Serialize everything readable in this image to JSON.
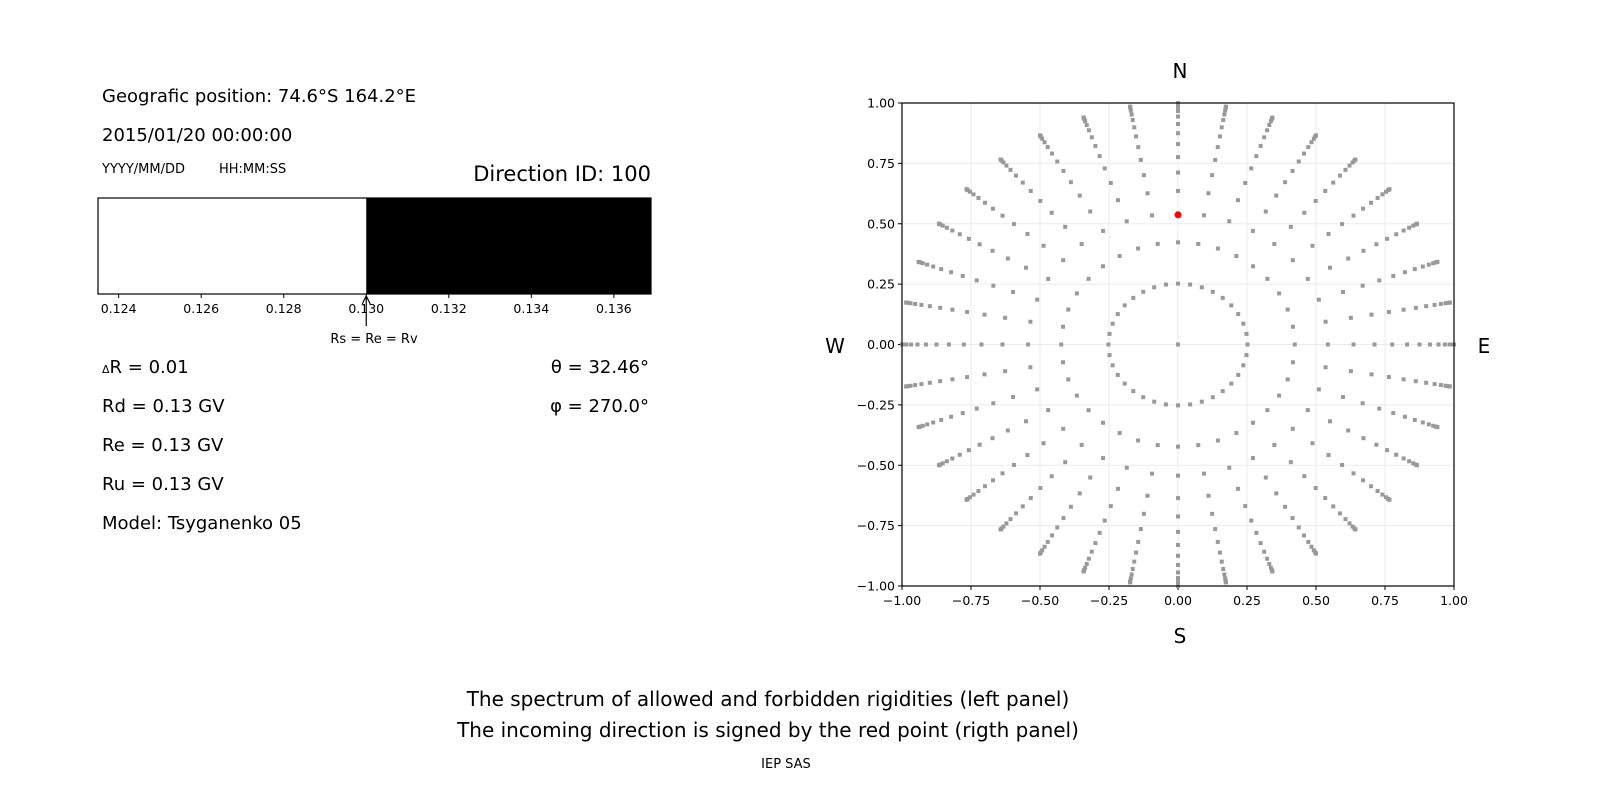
{
  "header": {
    "position": "Geografic position: 74.6°S 164.2°E",
    "datetime": "2015/01/20 00:00:00",
    "date_format": "YYYY/MM/DD",
    "time_format": "HH:MM:SS",
    "direction_id": "Direction ID: 100"
  },
  "params": {
    "delta_r_symbol": "Δ",
    "delta_r": "R = 0.01",
    "rd": "Rd = 0.13 GV",
    "re": "Re = 0.13 GV",
    "ru": "Ru = 0.13 GV",
    "model": "Model: Tsyganenko 05",
    "theta": "θ = 32.46°",
    "phi": "φ = 270.0°"
  },
  "footer": {
    "line1": "The spectrum of allowed and forbidden rigidities (left panel)",
    "line2": "The incoming direction is signed by the red point (rigth panel)",
    "credit": "IEP SAS"
  },
  "chart_data": [
    {
      "type": "bar",
      "xlim": [
        0.1235,
        0.1369
      ],
      "xticks": [
        "0.124",
        "0.126",
        "0.128",
        "0.130",
        "0.132",
        "0.134",
        "0.136"
      ],
      "segments": [
        {
          "from": 0.1235,
          "to": 0.13,
          "state": "allowed",
          "color": "#ffffff"
        },
        {
          "from": 0.13,
          "to": 0.1369,
          "state": "forbidden",
          "color": "#000000"
        }
      ],
      "annotation": {
        "text": "Rs = Re = Rv",
        "x": 0.13
      }
    },
    {
      "type": "scatter",
      "xlim": [
        -1,
        1
      ],
      "ylim": [
        -1,
        1
      ],
      "xticks": [
        "−1.00",
        "−0.75",
        "−0.50",
        "−0.25",
        "0.00",
        "0.25",
        "0.50",
        "0.75",
        "1.00"
      ],
      "yticks": [
        "−1.00",
        "−0.75",
        "−0.50",
        "−0.25",
        "0.00",
        "0.25",
        "0.50",
        "0.75",
        "1.00"
      ],
      "grid": true,
      "compass": {
        "top": "N",
        "bottom": "S",
        "left": "W",
        "right": "E"
      },
      "point_color": "#999999",
      "highlight_color": "#ff0000",
      "center_point": [
        0,
        0
      ],
      "ring_radii": [
        0.252,
        0.423,
        0.543,
        0.636,
        0.712,
        0.776,
        0.83,
        0.875,
        0.913,
        0.944,
        0.967,
        0.984,
        0.994,
        0.9995,
        1.0
      ],
      "azimuth_step_deg": 10,
      "highlight": {
        "x": 0.0,
        "y": 0.537
      }
    }
  ]
}
